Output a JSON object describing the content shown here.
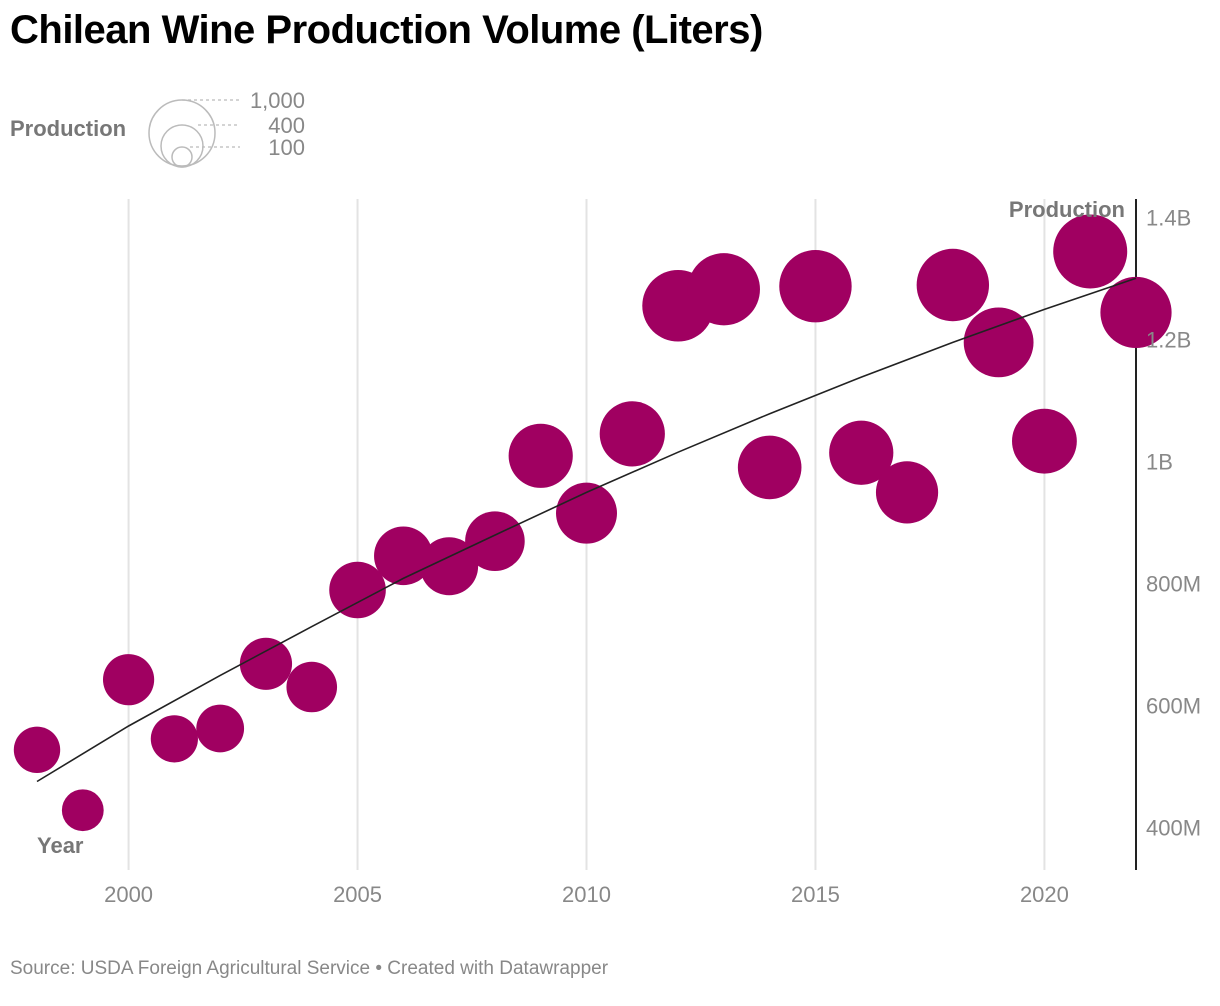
{
  "title": "Chilean Wine Production Volume (Liters)",
  "footer": "Source: USDA Foreign Agricultural Service • Created with Datawrapper",
  "legend": {
    "title": "Production",
    "sizes": [
      "1,000",
      "400",
      "100"
    ],
    "circle_color": "#bbbbbb"
  },
  "colors": {
    "bubble": "#a00061",
    "grid": "#e3e3e3",
    "trend": "#222222",
    "axis_line": "#222222",
    "tick_text": "#888888"
  },
  "chart_data": {
    "type": "scatter",
    "title": "Chilean Wine Production Volume (Liters)",
    "xlabel": "Year",
    "ylabel": "Production",
    "xlim": [
      1998,
      2022
    ],
    "ylim": [
      330000000,
      1430000000
    ],
    "x_ticks": [
      {
        "value": 2000,
        "label": "2000"
      },
      {
        "value": 2005,
        "label": "2005"
      },
      {
        "value": 2010,
        "label": "2010"
      },
      {
        "value": 2015,
        "label": "2015"
      },
      {
        "value": 2020,
        "label": "2020"
      }
    ],
    "y_ticks": [
      {
        "value": 400000000,
        "label": "400M"
      },
      {
        "value": 600000000,
        "label": "600M"
      },
      {
        "value": 800000000,
        "label": "800M"
      },
      {
        "value": 1000000000,
        "label": "1B"
      },
      {
        "value": 1200000000,
        "label": "1.2B"
      },
      {
        "value": 1400000000,
        "label": "1.4B"
      }
    ],
    "grid": true,
    "y_axis_position": "right",
    "size_encodes": "Production",
    "points": [
      {
        "x": 1998,
        "y": 527000000
      },
      {
        "x": 1999,
        "y": 428000000
      },
      {
        "x": 2000,
        "y": 642000000
      },
      {
        "x": 2001,
        "y": 545000000
      },
      {
        "x": 2002,
        "y": 562000000
      },
      {
        "x": 2003,
        "y": 668000000
      },
      {
        "x": 2004,
        "y": 630000000
      },
      {
        "x": 2005,
        "y": 789000000
      },
      {
        "x": 2006,
        "y": 845000000
      },
      {
        "x": 2007,
        "y": 828000000
      },
      {
        "x": 2008,
        "y": 869000000
      },
      {
        "x": 2009,
        "y": 1009000000
      },
      {
        "x": 2010,
        "y": 915000000
      },
      {
        "x": 2011,
        "y": 1045000000
      },
      {
        "x": 2012,
        "y": 1255000000
      },
      {
        "x": 2013,
        "y": 1282000000
      },
      {
        "x": 2014,
        "y": 990000000
      },
      {
        "x": 2015,
        "y": 1287000000
      },
      {
        "x": 2016,
        "y": 1014000000
      },
      {
        "x": 2017,
        "y": 949000000
      },
      {
        "x": 2018,
        "y": 1289000000
      },
      {
        "x": 2019,
        "y": 1195000000
      },
      {
        "x": 2020,
        "y": 1033000000
      },
      {
        "x": 2021,
        "y": 1344000000
      },
      {
        "x": 2022,
        "y": 1244000000
      }
    ],
    "trendline": {
      "type": "quadratic",
      "x": [
        1998,
        2000,
        2002,
        2004,
        2006,
        2008,
        2010,
        2012,
        2014,
        2016,
        2018,
        2020,
        2022
      ],
      "y": [
        475000000,
        566000000,
        649000000,
        729000000,
        808000000,
        879000000,
        949000000,
        1015000000,
        1078000000,
        1138000000,
        1195000000,
        1249000000,
        1300000000
      ]
    }
  }
}
